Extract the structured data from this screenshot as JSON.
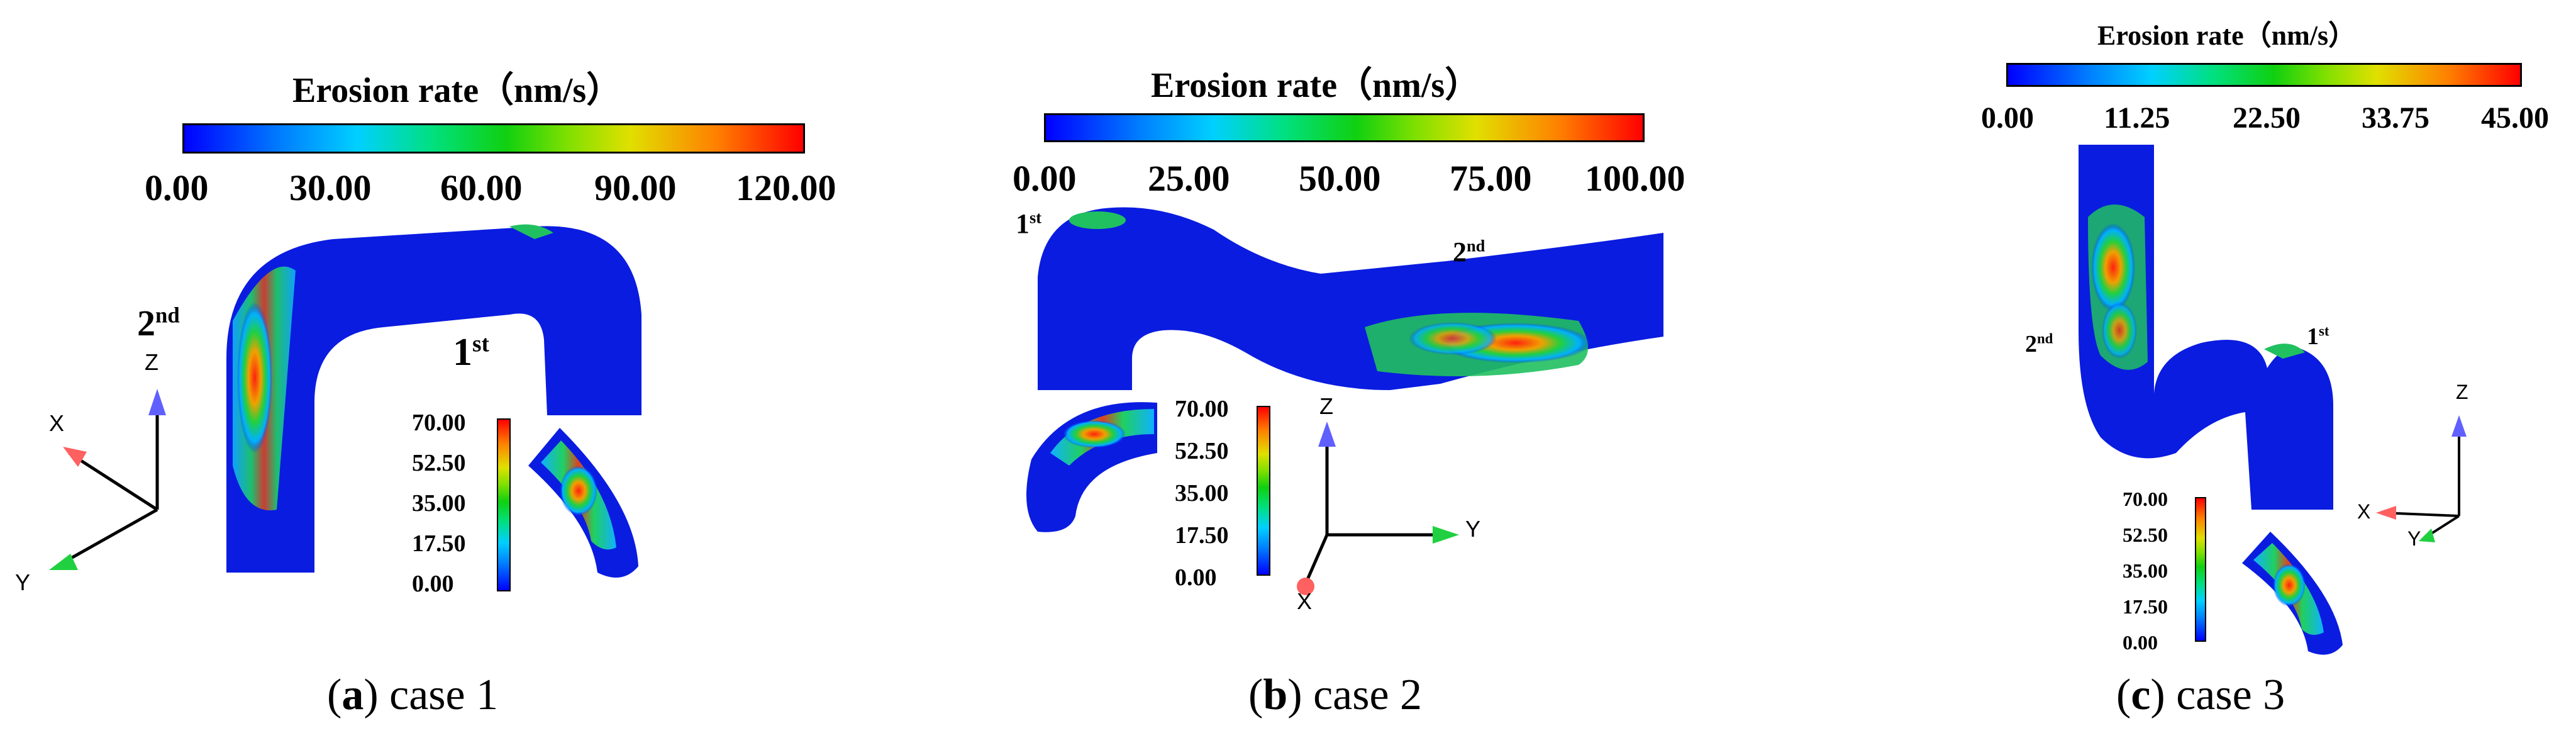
{
  "panels": [
    {
      "title": "Erosion rate（nm/s）",
      "ticks": [
        "0.00",
        "30.00",
        "60.00",
        "90.00",
        "120.00"
      ],
      "inset_ticks": [
        "70.00",
        "52.50",
        "35.00",
        "17.50",
        "0.00"
      ],
      "label_first": "1",
      "label_first_sup": "st",
      "label_second": "2",
      "label_second_sup": "nd",
      "axes": {
        "x": "X",
        "y": "Y",
        "z": "Z"
      },
      "caption_letter": "a",
      "caption_text": "case 1"
    },
    {
      "title": "Erosion rate（nm/s）",
      "ticks": [
        "0.00",
        "25.00",
        "50.00",
        "75.00",
        "100.00"
      ],
      "inset_ticks": [
        "70.00",
        "52.50",
        "35.00",
        "17.50",
        "0.00"
      ],
      "label_first": "1",
      "label_first_sup": "st",
      "label_second": "2",
      "label_second_sup": "nd",
      "axes": {
        "x": "X",
        "y": "Y",
        "z": "Z"
      },
      "caption_letter": "b",
      "caption_text": "case 2"
    },
    {
      "title": "Erosion rate（nm/s）",
      "ticks": [
        "0.00",
        "11.25",
        "22.50",
        "33.75",
        "45.00"
      ],
      "inset_ticks": [
        "70.00",
        "52.50",
        "35.00",
        "17.50",
        "0.00"
      ],
      "label_first": "1",
      "label_first_sup": "st",
      "label_second": "2",
      "label_second_sup": "nd",
      "axes": {
        "x": "X",
        "y": "Y",
        "z": "Z"
      },
      "caption_letter": "c",
      "caption_text": "case 3"
    }
  ],
  "colors": {
    "low": "#0000ff",
    "mid": "#10d010",
    "high": "#ff0000",
    "axis_x": "#ff6060",
    "axis_y": "#20d040",
    "axis_z": "#6060ff"
  }
}
